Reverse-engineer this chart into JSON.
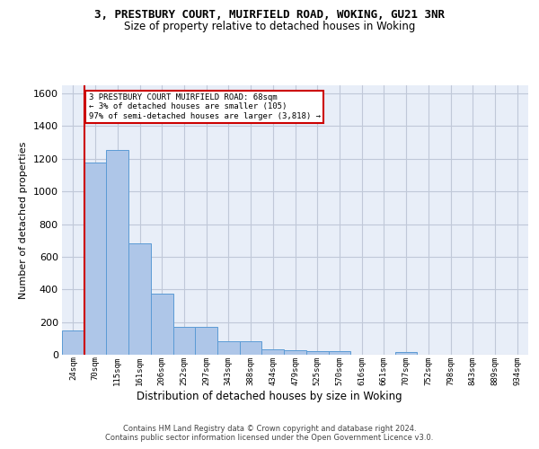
{
  "title_line1": "3, PRESTBURY COURT, MUIRFIELD ROAD, WOKING, GU21 3NR",
  "title_line2": "Size of property relative to detached houses in Woking",
  "xlabel": "Distribution of detached houses by size in Woking",
  "ylabel": "Number of detached properties",
  "bar_labels": [
    "24sqm",
    "70sqm",
    "115sqm",
    "161sqm",
    "206sqm",
    "252sqm",
    "297sqm",
    "343sqm",
    "388sqm",
    "434sqm",
    "479sqm",
    "525sqm",
    "570sqm",
    "616sqm",
    "661sqm",
    "707sqm",
    "752sqm",
    "798sqm",
    "843sqm",
    "889sqm",
    "934sqm"
  ],
  "bar_values": [
    150,
    1175,
    1255,
    680,
    375,
    170,
    170,
    80,
    80,
    35,
    30,
    22,
    22,
    0,
    0,
    15,
    0,
    0,
    0,
    0,
    0
  ],
  "bar_color": "#aec6e8",
  "bar_edge_color": "#5b9bd5",
  "annotation_line1": "3 PRESTBURY COURT MUIRFIELD ROAD: 68sqm",
  "annotation_line2": "← 3% of detached houses are smaller (105)",
  "annotation_line3": "97% of semi-detached houses are larger (3,818) →",
  "annotation_box_color": "#cc0000",
  "vline_x_index": 0.5,
  "ylim": [
    0,
    1650
  ],
  "yticks": [
    0,
    200,
    400,
    600,
    800,
    1000,
    1200,
    1400,
    1600
  ],
  "grid_color": "#c0c8d8",
  "bg_color": "#e8eef8",
  "footer_line1": "Contains HM Land Registry data © Crown copyright and database right 2024.",
  "footer_line2": "Contains public sector information licensed under the Open Government Licence v3.0."
}
